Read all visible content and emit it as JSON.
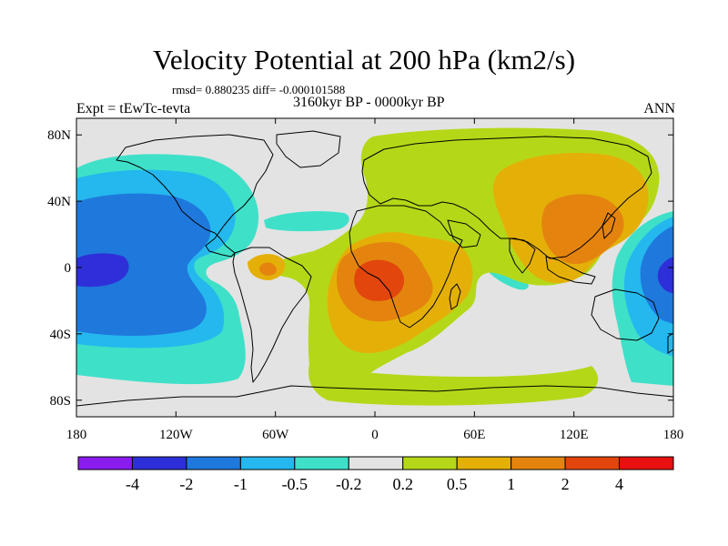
{
  "title": "Velocity Potential at 200 hPa (km2/s)",
  "stats": "rmsd= 0.880235 diff= -0.000101588",
  "left_label": "Expt = tEwTc-tevta",
  "center_label": "3160kyr BP - 0000kyr BP",
  "right_label": "ANN",
  "map": {
    "projection": "cylindrical-equidistant",
    "lon_range": [
      -180,
      180
    ],
    "lat_range": [
      -90,
      90
    ],
    "lat_ticks": [
      {
        "value": 80,
        "label": "80N"
      },
      {
        "value": 40,
        "label": "40N"
      },
      {
        "value": 0,
        "label": "0"
      },
      {
        "value": -40,
        "label": "40S"
      },
      {
        "value": -80,
        "label": "80S"
      }
    ],
    "lon_ticks": [
      {
        "value": -180,
        "label": "180"
      },
      {
        "value": -120,
        "label": "120W"
      },
      {
        "value": -60,
        "label": "60W"
      },
      {
        "value": 0,
        "label": "0"
      },
      {
        "value": 60,
        "label": "60E"
      },
      {
        "value": 120,
        "label": "120E"
      },
      {
        "value": 180,
        "label": "180"
      }
    ]
  },
  "colorbar": {
    "colors": [
      "#8a1cf0",
      "#2e2fd8",
      "#1f78dc",
      "#24b8ee",
      "#3fe0c8",
      "#e3e3e3",
      "#b4d818",
      "#e4b008",
      "#e4840e",
      "#e2460c",
      "#e81010"
    ],
    "labels": [
      "-4",
      "-2",
      "-1",
      "-0.5",
      "-0.2",
      "0.2",
      "0.5",
      "1",
      "2",
      "4"
    ]
  }
}
